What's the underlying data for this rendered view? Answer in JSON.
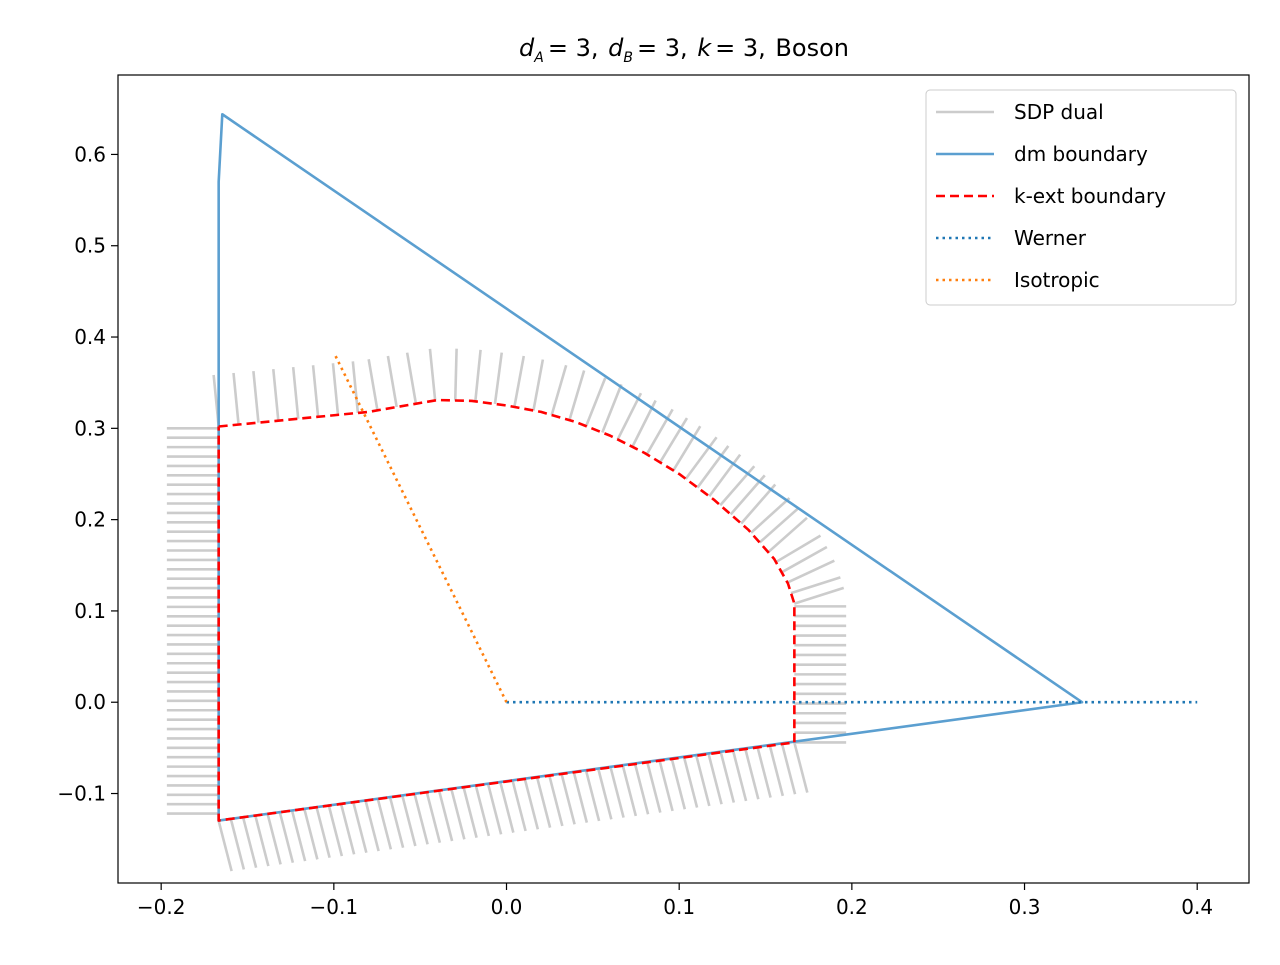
{
  "chart_data": {
    "type": "line",
    "title": {
      "d_a_symbol": "d",
      "d_a_sub": "A",
      "d_a_value": "= 3,",
      "d_b_symbol": "d",
      "d_b_sub": "B",
      "d_b_value": "= 3,",
      "k_symbol": "k",
      "k_value": "= 3,",
      "suffix": "Boson"
    },
    "xlabel": "",
    "ylabel": "",
    "xlim": [
      -0.225,
      0.43
    ],
    "ylim": [
      -0.198,
      0.687
    ],
    "x_ticks": [
      -0.2,
      -0.1,
      0.0,
      0.1,
      0.2,
      0.3,
      0.4
    ],
    "x_tick_labels": [
      "−0.2",
      "−0.1",
      "0.0",
      "0.1",
      "0.2",
      "0.3",
      "0.4"
    ],
    "y_ticks": [
      -0.1,
      0.0,
      0.1,
      0.2,
      0.3,
      0.4,
      0.5,
      0.6
    ],
    "y_tick_labels": [
      "−0.1",
      "0.0",
      "0.1",
      "0.2",
      "0.3",
      "0.4",
      "0.5",
      "0.6"
    ],
    "grid": false,
    "legend_position": "top-right",
    "series": [
      {
        "name": "SDP dual",
        "color": "#cccccc",
        "style": "solid",
        "kind": "dual-segments",
        "segment_length": 0.03,
        "regions": [
          {
            "from": [
              -0.1667,
              0.3
            ],
            "to": [
              -0.1667,
              -0.122
            ],
            "direction": [
              -1,
              0
            ],
            "count": 42
          },
          {
            "from": [
              -0.1667,
              -0.13
            ],
            "to": [
              0.1667,
              -0.044
            ],
            "direction": [
              0.25,
              -0.968
            ],
            "count": 48
          },
          {
            "from": [
              0.1667,
              -0.044
            ],
            "to": [
              0.1667,
              0.105
            ],
            "direction": [
              1,
              0
            ],
            "count": 15
          },
          {
            "from": [
              -0.1667,
              0.302
            ],
            "to": [
              0.1667,
              0.108
            ],
            "direction": "normal",
            "count": 40
          }
        ]
      },
      {
        "name": "dm boundary",
        "color": "#5b9fd0",
        "style": "solid",
        "points": [
          [
            -0.1667,
            0.3
          ],
          [
            -0.1667,
            0.57
          ],
          [
            -0.1646,
            0.644
          ],
          [
            0.3333,
            0.0
          ],
          [
            -0.1667,
            -0.1296
          ],
          [
            -0.1667,
            0.3
          ]
        ]
      },
      {
        "name": "k-ext boundary",
        "color": "#ff0000",
        "style": "dashed",
        "points": [
          [
            -0.1667,
            0.302
          ],
          [
            -0.08,
            0.318
          ],
          [
            -0.04,
            0.331
          ],
          [
            -0.02,
            0.33
          ],
          [
            0.0,
            0.325
          ],
          [
            0.02,
            0.318
          ],
          [
            0.04,
            0.307
          ],
          [
            0.06,
            0.292
          ],
          [
            0.08,
            0.273
          ],
          [
            0.1,
            0.25
          ],
          [
            0.12,
            0.222
          ],
          [
            0.14,
            0.189
          ],
          [
            0.155,
            0.157
          ],
          [
            0.163,
            0.13
          ],
          [
            0.1667,
            0.108
          ],
          [
            0.1667,
            -0.044
          ],
          [
            -0.1667,
            -0.1296
          ],
          [
            -0.1667,
            0.302
          ]
        ]
      },
      {
        "name": "Werner",
        "color": "#1f77b4",
        "style": "dotted",
        "points": [
          [
            0.0,
            0.0
          ],
          [
            0.4,
            0.0
          ]
        ]
      },
      {
        "name": "Isotropic",
        "color": "#ff7f0e",
        "style": "dotted",
        "points": [
          [
            0.0,
            0.0
          ],
          [
            -0.1,
            0.383
          ]
        ]
      }
    ],
    "legend": [
      {
        "label": "SDP dual",
        "color": "#cccccc",
        "style": "solid"
      },
      {
        "label": "dm boundary",
        "color": "#5b9fd0",
        "style": "solid"
      },
      {
        "label": "k-ext boundary",
        "color": "#ff0000",
        "style": "dashed"
      },
      {
        "label": "Werner",
        "color": "#1f77b4",
        "style": "dotted"
      },
      {
        "label": "Isotropic",
        "color": "#ff7f0e",
        "style": "dotted"
      }
    ]
  }
}
